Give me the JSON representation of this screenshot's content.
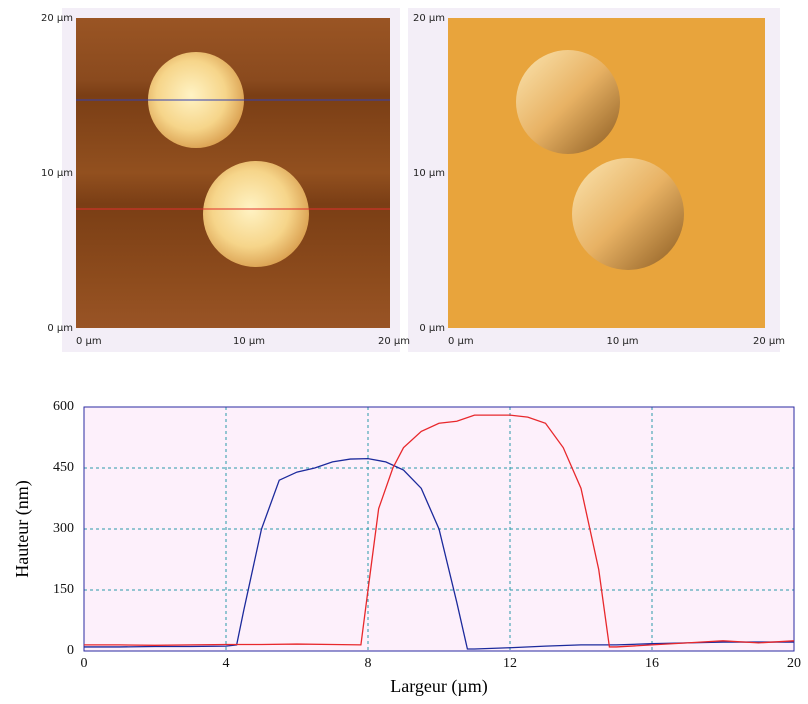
{
  "images": [
    {
      "x_labels": [
        "0 µm",
        "10 µm",
        "20 µm"
      ],
      "y_labels": [
        "20 µm",
        "10 µm",
        "0 µm"
      ]
    },
    {
      "x_labels": [
        "0 µm",
        "10 µm",
        "20 µm"
      ],
      "y_labels": [
        "20 µm",
        "10 µm",
        "0 µm"
      ]
    }
  ],
  "chart_data": {
    "type": "line",
    "x_label": "Largeur (µm)",
    "y_label": "Hauteur (nm)",
    "xlim": [
      0,
      20
    ],
    "xticks": [
      0,
      4,
      8,
      12,
      16,
      20
    ],
    "ylim": [
      0,
      600
    ],
    "yticks": [
      0,
      150,
      300,
      450,
      600
    ],
    "grid": true,
    "series": [
      {
        "color": "#1c2a9c",
        "x": [
          0,
          1,
          2,
          3,
          4,
          4.3,
          4.5,
          5,
          5.5,
          6,
          6.5,
          7,
          7.5,
          8,
          8.5,
          9,
          9.5,
          10,
          10.5,
          10.8,
          11,
          12,
          13,
          14,
          15,
          16,
          17,
          18,
          19,
          20
        ],
        "values": [
          10,
          10,
          11,
          11,
          12,
          15,
          100,
          300,
          420,
          440,
          450,
          465,
          472,
          473,
          465,
          445,
          400,
          300,
          120,
          5,
          5,
          8,
          12,
          15,
          15,
          18,
          20,
          22,
          22,
          22
        ]
      },
      {
        "color": "#e8282c",
        "x": [
          0,
          1,
          2,
          3,
          4,
          5,
          6,
          7,
          7.8,
          8,
          8.3,
          8.7,
          9,
          9.5,
          10,
          10.5,
          11,
          12,
          12.5,
          13,
          13.5,
          14,
          14.5,
          14.8,
          15,
          16,
          17,
          18,
          19,
          20
        ],
        "values": [
          15,
          15,
          14,
          15,
          16,
          16,
          17,
          16,
          15,
          150,
          350,
          450,
          500,
          540,
          560,
          565,
          580,
          580,
          575,
          560,
          500,
          400,
          200,
          10,
          10,
          15,
          20,
          25,
          20,
          25
        ]
      }
    ]
  }
}
